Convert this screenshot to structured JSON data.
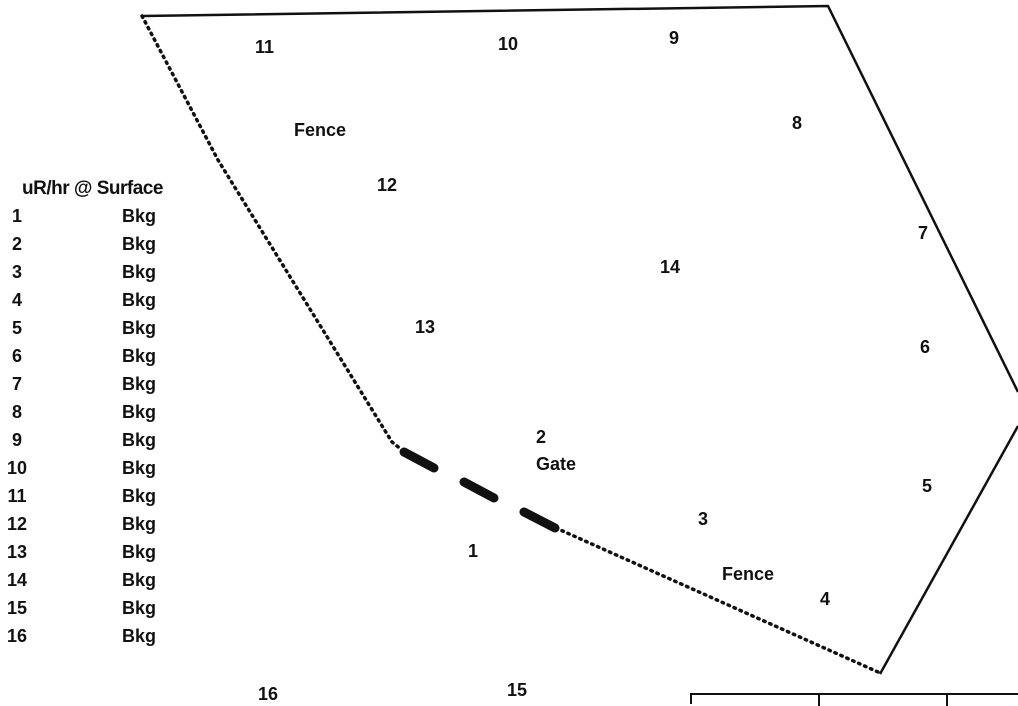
{
  "legend": {
    "title": "uR/hr @ Surface",
    "rows": [
      {
        "num": "1",
        "value": "Bkg"
      },
      {
        "num": "2",
        "value": "Bkg"
      },
      {
        "num": "3",
        "value": "Bkg"
      },
      {
        "num": "4",
        "value": "Bkg"
      },
      {
        "num": "5",
        "value": "Bkg"
      },
      {
        "num": "6",
        "value": "Bkg"
      },
      {
        "num": "7",
        "value": "Bkg"
      },
      {
        "num": "8",
        "value": "Bkg"
      },
      {
        "num": "9",
        "value": "Bkg"
      },
      {
        "num": "10",
        "value": "Bkg"
      },
      {
        "num": "11",
        "value": "Bkg"
      },
      {
        "num": "12",
        "value": "Bkg"
      },
      {
        "num": "13",
        "value": "Bkg"
      },
      {
        "num": "14",
        "value": "Bkg"
      },
      {
        "num": "15",
        "value": "Bkg"
      },
      {
        "num": "16",
        "value": "Bkg"
      }
    ]
  },
  "map": {
    "labels": {
      "fence_top": "Fence",
      "fence_bottom": "Fence",
      "gate": "Gate"
    },
    "points": {
      "p1": "1",
      "p2": "2",
      "p3": "3",
      "p4": "4",
      "p5": "5",
      "p6": "6",
      "p7": "7",
      "p8": "8",
      "p9": "9",
      "p10": "10",
      "p11": "11",
      "p12": "12",
      "p13": "13",
      "p14": "14",
      "p15": "15",
      "p16": "16"
    }
  },
  "colors": {
    "ink": "#111111",
    "background": "#ffffff"
  }
}
